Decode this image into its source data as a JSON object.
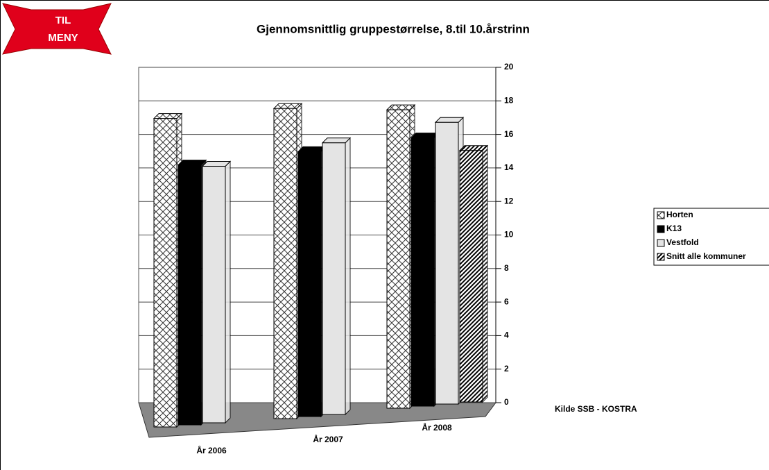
{
  "menu_button": [
    "TIL",
    "MENY"
  ],
  "chart_data": {
    "type": "bar3d",
    "title": "Gjennomsnittlig gruppestørrelse, 8.til 10.årstrinn",
    "annotation": "Kilde SSB - KOSTRA",
    "categories": [
      "År 2006",
      "År 2007",
      "År 2008"
    ],
    "series": [
      {
        "name": "Horten",
        "color": "#ffffff",
        "pattern": "crosshatch",
        "values": [
          18.4,
          18.5,
          17.8
        ]
      },
      {
        "name": "K13",
        "color": "#000000",
        "pattern": "solid",
        "values": [
          15.5,
          15.8,
          16.0
        ]
      },
      {
        "name": "Vestfold",
        "color": "#e4e4e4",
        "pattern": "solid",
        "values": [
          15.3,
          16.2,
          16.8
        ]
      },
      {
        "name": "Snitt alle kommuner",
        "color": "#ffffff",
        "pattern": "stripes",
        "values": [
          null,
          null,
          15.0
        ]
      }
    ],
    "ylim": [
      0,
      20
    ],
    "yticks": [
      0,
      2,
      4,
      6,
      8,
      10,
      12,
      14,
      16,
      18,
      20
    ],
    "grid": true,
    "legend": "right"
  }
}
